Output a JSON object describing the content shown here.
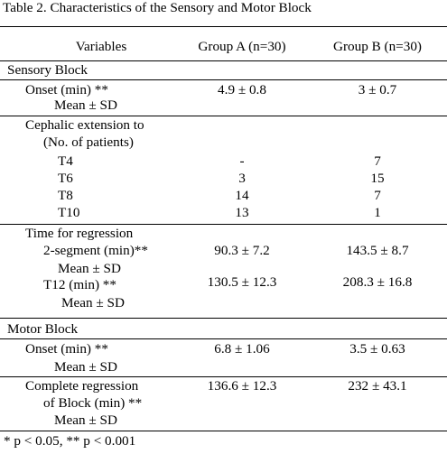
{
  "title": "Table 2. Characteristics of the Sensory and Motor Block",
  "header": {
    "variables": "Variables",
    "group_a": "Group A (n=30)",
    "group_b": "Group B (n=30)"
  },
  "sensory": {
    "section": "Sensory Block",
    "onset_label": "Onset (min) **",
    "onset_sub": "Mean ± SD",
    "onset_a": "4.9 ± 0.8",
    "onset_b": "3 ± 0.7",
    "ceph_label1": "Cephalic extension to",
    "ceph_label2": "(No. of patients)",
    "ceph_rows": [
      {
        "level": "T4",
        "a": "-",
        "b": "7"
      },
      {
        "level": "T6",
        "a": "3",
        "b": "15"
      },
      {
        "level": "T8",
        "a": "14",
        "b": "7"
      },
      {
        "level": "T10",
        "a": "13",
        "b": "1"
      }
    ],
    "regression_label": "Time for regression",
    "seg_label": "2-segment (min)**",
    "seg_sub": "Mean ± SD",
    "seg_a": "90.3 ± 7.2",
    "seg_b": "143.5 ± 8.7",
    "t12_label": "T12 (min) **",
    "t12_sub": "Mean ± SD",
    "t12_a": "130.5 ± 12.3",
    "t12_b": "208.3 ± 16.8"
  },
  "motor": {
    "section": "Motor Block",
    "onset_label": "Onset (min) **",
    "onset_sub": "Mean ± SD",
    "onset_a": "6.8 ± 1.06",
    "onset_b": "3.5 ± 0.63",
    "complete_label1": "Complete regression",
    "complete_label2": "of Block (min) **",
    "complete_sub": "Mean ± SD",
    "complete_a": "136.6 ± 12.3",
    "complete_b": "232 ± 43.1"
  },
  "footnote": "* p < 0.05, ** p < 0.001"
}
